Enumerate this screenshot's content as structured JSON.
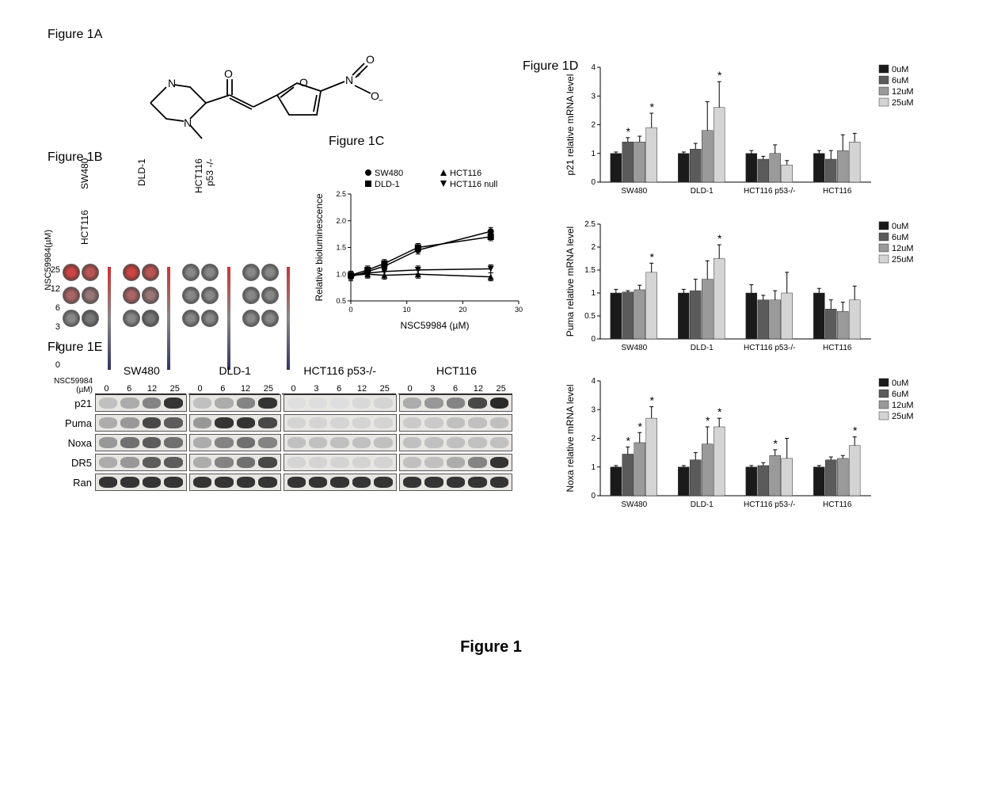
{
  "main_title": "Figure 1",
  "panel_a": {
    "label": "Figure 1A",
    "atoms": [
      "N",
      "N",
      "O",
      "O",
      "N",
      "O",
      "O"
    ],
    "methyl": "+"
  },
  "panel_b": {
    "label": "Figure 1B",
    "cell_lines": [
      "SW480",
      "DLD-1",
      "HCT116 p53 -/-",
      "HCT116"
    ],
    "doses": [
      25,
      12,
      6,
      3,
      1,
      0
    ],
    "axis_label": "NSC59984(µM)",
    "well_colors": {
      "SW480": [
        "#cc4444",
        "#bb5555",
        "#aa6666",
        "#997777",
        "#888888",
        "#777777"
      ],
      "DLD-1": [
        "#cc4444",
        "#bb5555",
        "#aa6666",
        "#997777",
        "#888888",
        "#777777"
      ],
      "HCT116 p53 -/-": [
        "#888888",
        "#888888",
        "#888888",
        "#888888",
        "#888888",
        "#888888"
      ],
      "HCT116": [
        "#888888",
        "#888888",
        "#888888",
        "#888888",
        "#888888",
        "#888888"
      ]
    },
    "gradient_top": "#cc3333",
    "gradient_bottom": "#333366"
  },
  "panel_c": {
    "label": "Figure 1C",
    "x_label": "NSC59984 (µM)",
    "y_label": "Relative bioluminescence",
    "x_ticks": [
      0,
      10,
      20,
      30
    ],
    "y_ticks": [
      0.5,
      1.0,
      1.5,
      2.0,
      2.5
    ],
    "xlim": [
      0,
      30
    ],
    "ylim": [
      0.5,
      2.5
    ],
    "series": [
      {
        "name": "SW480",
        "symbol": "circle",
        "data": [
          [
            0,
            0.95
          ],
          [
            3,
            1.05
          ],
          [
            6,
            1.15
          ],
          [
            12,
            1.45
          ],
          [
            25,
            1.8
          ]
        ]
      },
      {
        "name": "HCT116",
        "symbol": "triangle-up",
        "data": [
          [
            0,
            0.98
          ],
          [
            3,
            1.0
          ],
          [
            6,
            0.98
          ],
          [
            12,
            1.0
          ],
          [
            25,
            0.95
          ]
        ]
      },
      {
        "name": "DLD-1",
        "symbol": "square",
        "data": [
          [
            0,
            0.98
          ],
          [
            3,
            1.08
          ],
          [
            6,
            1.2
          ],
          [
            12,
            1.5
          ],
          [
            25,
            1.7
          ]
        ]
      },
      {
        "name": "HCT116 null",
        "symbol": "triangle-down",
        "data": [
          [
            0,
            0.98
          ],
          [
            3,
            1.02
          ],
          [
            6,
            1.05
          ],
          [
            12,
            1.08
          ],
          [
            25,
            1.1
          ]
        ]
      }
    ],
    "legend_order": [
      [
        "SW480",
        "circle"
      ],
      [
        "HCT116",
        "triangle-up"
      ],
      [
        "DLD-1",
        "square"
      ],
      [
        "HCT116 null",
        "triangle-down"
      ]
    ],
    "line_color": "#000000",
    "font_size": 11
  },
  "panel_d": {
    "label": "Figure 1D",
    "cell_lines": [
      "SW480",
      "DLD-1",
      "HCT116 p53-/-",
      "HCT116"
    ],
    "doses_legend": [
      "0uM",
      "6uM",
      "12uM",
      "25uM"
    ],
    "colors": [
      "#1a1a1a",
      "#5b5b5b",
      "#9a9a9a",
      "#d4d4d4"
    ],
    "charts": [
      {
        "y_label": "p21 relative mRNA level",
        "ylim": [
          0,
          4
        ],
        "yticks": [
          0,
          1,
          2,
          3,
          4
        ],
        "data": [
          {
            "cell": "SW480",
            "values": [
              1.0,
              1.4,
              1.4,
              1.9
            ],
            "errors": [
              0.05,
              0.15,
              0.2,
              0.5
            ],
            "sig": [
              false,
              true,
              false,
              true
            ]
          },
          {
            "cell": "DLD-1",
            "values": [
              1.0,
              1.15,
              1.8,
              2.6
            ],
            "errors": [
              0.05,
              0.2,
              1.0,
              0.9
            ],
            "sig": [
              false,
              false,
              false,
              true
            ]
          },
          {
            "cell": "HCT116 p53-/-",
            "values": [
              1.0,
              0.8,
              1.0,
              0.6
            ],
            "errors": [
              0.1,
              0.1,
              0.3,
              0.15
            ],
            "sig": [
              false,
              false,
              false,
              false
            ]
          },
          {
            "cell": "HCT116",
            "values": [
              1.0,
              0.8,
              1.1,
              1.4
            ],
            "errors": [
              0.1,
              0.3,
              0.55,
              0.3
            ],
            "sig": [
              false,
              false,
              false,
              false
            ]
          }
        ]
      },
      {
        "y_label": "Puma relative mRNA level",
        "ylim": [
          0,
          2.5
        ],
        "yticks": [
          0,
          0.5,
          1.0,
          1.5,
          2.0,
          2.5
        ],
        "data": [
          {
            "cell": "SW480",
            "values": [
              1.0,
              1.02,
              1.07,
              1.45
            ],
            "errors": [
              0.08,
              0.03,
              0.1,
              0.2
            ],
            "sig": [
              false,
              false,
              false,
              true
            ]
          },
          {
            "cell": "DLD-1",
            "values": [
              1.0,
              1.05,
              1.3,
              1.75
            ],
            "errors": [
              0.08,
              0.25,
              0.4,
              0.3
            ],
            "sig": [
              false,
              false,
              false,
              true
            ]
          },
          {
            "cell": "HCT116 p53-/-",
            "values": [
              1.0,
              0.85,
              0.85,
              1.0
            ],
            "errors": [
              0.18,
              0.1,
              0.2,
              0.45
            ],
            "sig": [
              false,
              false,
              false,
              false
            ]
          },
          {
            "cell": "HCT116",
            "values": [
              1.0,
              0.65,
              0.6,
              0.85
            ],
            "errors": [
              0.1,
              0.2,
              0.2,
              0.3
            ],
            "sig": [
              false,
              false,
              false,
              false
            ]
          }
        ]
      },
      {
        "y_label": "Noxa relative mRNA level",
        "ylim": [
          0,
          4
        ],
        "yticks": [
          0,
          1,
          2,
          3,
          4
        ],
        "data": [
          {
            "cell": "SW480",
            "values": [
              1.0,
              1.45,
              1.85,
              2.7
            ],
            "errors": [
              0.05,
              0.25,
              0.35,
              0.4
            ],
            "sig": [
              false,
              true,
              true,
              true
            ]
          },
          {
            "cell": "DLD-1",
            "values": [
              1.0,
              1.25,
              1.8,
              2.4
            ],
            "errors": [
              0.05,
              0.25,
              0.6,
              0.3
            ],
            "sig": [
              false,
              false,
              true,
              true
            ]
          },
          {
            "cell": "HCT116 p53-/-",
            "values": [
              1.0,
              1.05,
              1.4,
              1.3
            ],
            "errors": [
              0.05,
              0.1,
              0.2,
              0.7
            ],
            "sig": [
              false,
              false,
              true,
              false
            ]
          },
          {
            "cell": "HCT116",
            "values": [
              1.0,
              1.25,
              1.3,
              1.75
            ],
            "errors": [
              0.05,
              0.1,
              0.1,
              0.3
            ],
            "sig": [
              false,
              false,
              false,
              true
            ]
          }
        ]
      }
    ]
  },
  "panel_e": {
    "label": "Figure 1E",
    "compound_label": "NSC59984",
    "unit_label": "(µM)",
    "cell_lines": [
      "SW480",
      "DLD-1",
      "HCT116 p53-/-",
      "HCT116"
    ],
    "doses": {
      "SW480": [
        0,
        6,
        12,
        25
      ],
      "DLD-1": [
        0,
        6,
        12,
        25
      ],
      "HCT116 p53-/-": [
        0,
        3,
        6,
        12,
        25
      ],
      "HCT116": [
        0,
        3,
        6,
        12,
        25
      ]
    },
    "proteins": [
      "p21",
      "Puma",
      "Noxa",
      "DR5",
      "Ran"
    ],
    "band_intensities": {
      "p21": {
        "SW480": [
          0.2,
          0.3,
          0.5,
          0.9
        ],
        "DLD-1": [
          0.2,
          0.3,
          0.5,
          0.9
        ],
        "HCT116 p53-/-": [
          0.05,
          0.05,
          0.05,
          0.08,
          0.1
        ],
        "HCT116": [
          0.3,
          0.4,
          0.5,
          0.8,
          0.95
        ]
      },
      "Puma": {
        "SW480": [
          0.3,
          0.4,
          0.8,
          0.7
        ],
        "DLD-1": [
          0.4,
          0.9,
          0.9,
          0.8
        ],
        "HCT116 p53-/-": [
          0.1,
          0.1,
          0.1,
          0.1,
          0.1
        ],
        "HCT116": [
          0.15,
          0.15,
          0.2,
          0.2,
          0.2
        ]
      },
      "Noxa": {
        "SW480": [
          0.4,
          0.6,
          0.7,
          0.6
        ],
        "DLD-1": [
          0.3,
          0.5,
          0.6,
          0.5
        ],
        "HCT116 p53-/-": [
          0.2,
          0.2,
          0.2,
          0.2,
          0.2
        ],
        "HCT116": [
          0.2,
          0.2,
          0.2,
          0.2,
          0.2
        ]
      },
      "DR5": {
        "SW480": [
          0.3,
          0.4,
          0.7,
          0.7
        ],
        "DLD-1": [
          0.3,
          0.5,
          0.6,
          0.8
        ],
        "HCT116 p53-/-": [
          0.1,
          0.1,
          0.1,
          0.1,
          0.1
        ],
        "HCT116": [
          0.2,
          0.2,
          0.3,
          0.5,
          0.9
        ]
      },
      "Ran": {
        "SW480": [
          0.9,
          0.9,
          0.9,
          0.9
        ],
        "DLD-1": [
          0.9,
          0.9,
          0.9,
          0.9
        ],
        "HCT116 p53-/-": [
          0.9,
          0.9,
          0.9,
          0.9,
          0.9
        ],
        "HCT116": [
          0.9,
          0.9,
          0.9,
          0.9,
          0.9
        ]
      }
    }
  }
}
